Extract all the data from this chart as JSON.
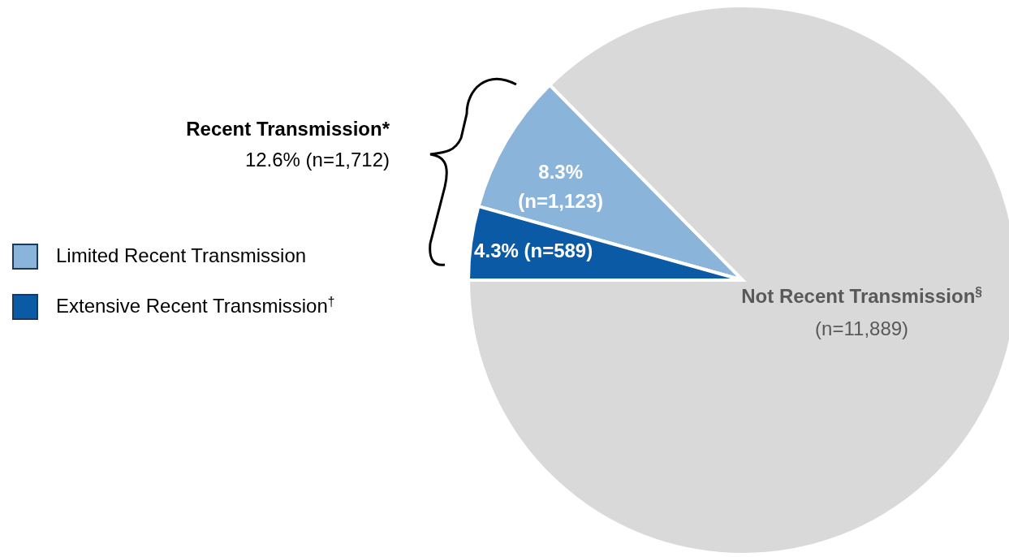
{
  "chart_data": {
    "type": "pie",
    "categories": [
      "Limited Recent Transmission",
      "Extensive Recent Transmission$^{†}$",
      "Not Recent Transmission$^{§}$"
    ],
    "values": [
      1123,
      589,
      11889
    ],
    "colors": [
      "#8bb4da",
      "#0a5aa5",
      "#d9d9d9"
    ],
    "value_labels": [
      "8.3%\n(n=1,123)",
      "4.3% (n=589)",
      "(n=11,889)"
    ],
    "annotations": [
      "Recent Transmission*",
      "12.6% (n=1,712)"
    ],
    "legend": "left"
  }
}
